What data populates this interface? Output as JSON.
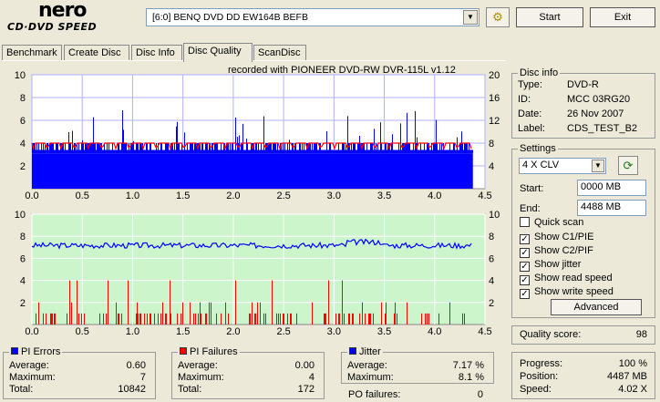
{
  "app": {
    "logo_top": "nero",
    "logo_bottom": "CD·DVD SPEED"
  },
  "drive": {
    "selected": "[6:0]   BENQ DVD DD EW164B BEFB"
  },
  "toolbar": {
    "start_label": "Start",
    "exit_label": "Exit",
    "drive_icon": "refresh-drive-icon"
  },
  "tabs": [
    {
      "label": "Benchmark"
    },
    {
      "label": "Create Disc"
    },
    {
      "label": "Disc Info"
    },
    {
      "label": "Disc Quality",
      "active": true
    },
    {
      "label": "ScanDisc"
    }
  ],
  "chart_data": [
    {
      "type": "bar",
      "title": "recorded with PIONEER DVD-RW  DVR-115L v1.12",
      "xlim": [
        0,
        4.5
      ],
      "x_ticks": [
        "0.0",
        "0.5",
        "1.0",
        "1.5",
        "2.0",
        "2.5",
        "3.0",
        "3.5",
        "4.0",
        "4.5"
      ],
      "ylim_left": [
        0,
        10
      ],
      "y_ticks_left": [
        "2",
        "4",
        "6",
        "8",
        "10"
      ],
      "ylim_right": [
        0,
        20
      ],
      "y_ticks_right": [
        "4",
        "8",
        "12",
        "16",
        "20"
      ],
      "series": [
        {
          "name": "PI Errors",
          "color": "#0000ff",
          "typical": 4,
          "baseline": 3.1,
          "max": 7
        },
        {
          "name": "read speed",
          "color": "#ff0000",
          "right_axis_value": 8
        }
      ]
    },
    {
      "type": "bar",
      "xlim": [
        0,
        4.5
      ],
      "x_ticks": [
        "0.0",
        "0.5",
        "1.0",
        "1.5",
        "2.0",
        "2.5",
        "3.0",
        "3.5",
        "4.0",
        "4.5"
      ],
      "ylim_left": [
        0,
        10
      ],
      "y_ticks_left": [
        "2",
        "4",
        "6",
        "8",
        "10"
      ],
      "ylim_right": [
        0,
        10
      ],
      "y_ticks_right": [
        "2",
        "4",
        "6",
        "8",
        "10"
      ],
      "series": [
        {
          "name": "PI Failures",
          "color": "#ff0000",
          "max": 4
        },
        {
          "name": "Jitter",
          "color": "#0000ff",
          "average": 7.17
        }
      ]
    }
  ],
  "pi_errors": {
    "title": "PI Errors",
    "color": "#0000ff",
    "average_label": "Average:",
    "average": "0.60",
    "maximum_label": "Maximum:",
    "maximum": "7",
    "total_label": "Total:",
    "total": "10842"
  },
  "pi_failures": {
    "title": "PI Failures",
    "color": "#ff0000",
    "average_label": "Average:",
    "average": "0.00",
    "maximum_label": "Maximum:",
    "maximum": "4",
    "total_label": "Total:",
    "total": "172"
  },
  "jitter": {
    "title": "Jitter",
    "color": "#0000ff",
    "average_label": "Average:",
    "average": "7.17 %",
    "maximum_label": "Maximum:",
    "maximum": "8.1 %"
  },
  "po_failures": {
    "label": "PO failures:",
    "value": "0"
  },
  "disc_info": {
    "title": "Disc info",
    "type_label": "Type:",
    "type": "DVD-R",
    "id_label": "ID:",
    "id": "MCC 03RG20",
    "date_label": "Date:",
    "date": "26 Nov 2007",
    "label_label": "Label:",
    "label": "CDS_TEST_B2"
  },
  "settings": {
    "title": "Settings",
    "speed": "4 X CLV",
    "start_label": "Start:",
    "start": "0000 MB",
    "end_label": "End:",
    "end": "4488 MB",
    "quick_scan": "Quick scan",
    "show_c1": "Show C1/PIE",
    "show_c2": "Show C2/PIF",
    "show_jitter": "Show jitter",
    "show_read": "Show read speed",
    "show_write": "Show write speed",
    "advanced": "Advanced"
  },
  "quality": {
    "label": "Quality score:",
    "value": "98"
  },
  "progress": {
    "progress_label": "Progress:",
    "progress": "100 %",
    "position_label": "Position:",
    "position": "4487 MB",
    "speed_label": "Speed:",
    "speed": "4.02 X"
  }
}
